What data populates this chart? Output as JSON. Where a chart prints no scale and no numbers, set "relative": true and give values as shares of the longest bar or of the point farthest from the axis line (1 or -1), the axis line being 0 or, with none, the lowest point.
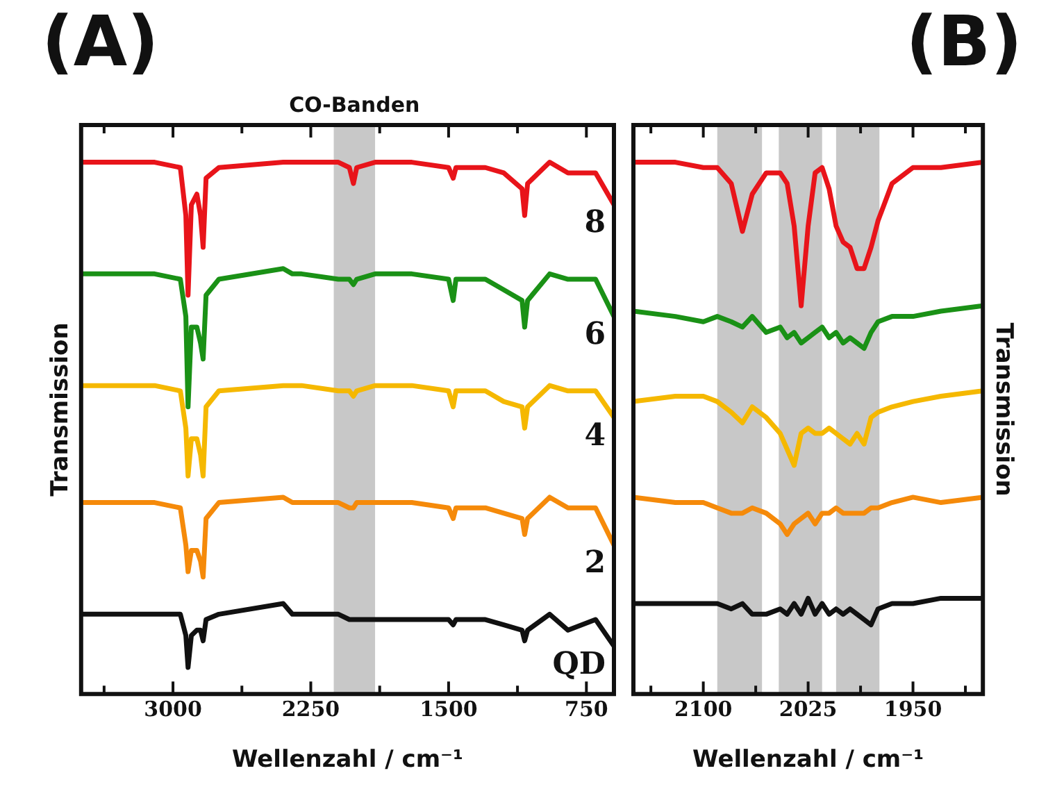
{
  "chart_data": [
    {
      "type": "line",
      "title": "(A)",
      "xlabel": "Wellenzahl / cm⁻¹",
      "ylabel": "Transmission",
      "relative": true,
      "grid": false,
      "legend": false,
      "marker": "none",
      "line_style": "solid",
      "tick_labels": "x",
      "xlim": [
        3500,
        600
      ],
      "xticks": [
        {
          "value": 3375,
          "label": null
        },
        3000,
        {
          "value": 2625,
          "label": null
        },
        2250,
        {
          "value": 1875,
          "label": null
        },
        1500,
        {
          "value": 1125,
          "label": null
        },
        750
      ],
      "bands": [
        {
          "axis": "x",
          "from": 2125,
          "to": 1900,
          "label": "CO-Banden",
          "color": "#c8c8c8"
        }
      ],
      "x": [
        3500,
        3100,
        2960,
        2930,
        2918,
        2900,
        2870,
        2850,
        2836,
        2820,
        2750,
        2400,
        2350,
        2300,
        2100,
        2040,
        2018,
        2000,
        1900,
        1700,
        1500,
        1475,
        1460,
        1300,
        1200,
        1100,
        1086,
        1070,
        950,
        850,
        700,
        600
      ],
      "series": [
        {
          "name": "8",
          "color": "#e8141a",
          "values": [
            1,
            1,
            0.99,
            0.9,
            0.75,
            0.92,
            0.94,
            0.9,
            0.84,
            0.97,
            0.99,
            1,
            1,
            1,
            1,
            0.99,
            0.96,
            0.99,
            1,
            1,
            0.99,
            0.97,
            0.99,
            0.99,
            0.98,
            0.95,
            0.9,
            0.96,
            1,
            0.98,
            0.98,
            0.92
          ]
        },
        {
          "name": "6",
          "color": "#1a9116",
          "values": [
            0.79,
            0.79,
            0.78,
            0.71,
            0.54,
            0.69,
            0.69,
            0.66,
            0.63,
            0.75,
            0.78,
            0.8,
            0.79,
            0.79,
            0.78,
            0.78,
            0.77,
            0.78,
            0.79,
            0.79,
            0.78,
            0.74,
            0.78,
            0.78,
            0.76,
            0.74,
            0.69,
            0.74,
            0.79,
            0.78,
            0.78,
            0.71
          ]
        },
        {
          "name": "4",
          "color": "#f5b800",
          "values": [
            0.58,
            0.58,
            0.57,
            0.5,
            0.41,
            0.48,
            0.48,
            0.45,
            0.41,
            0.54,
            0.57,
            0.58,
            0.58,
            0.58,
            0.57,
            0.57,
            0.56,
            0.57,
            0.58,
            0.58,
            0.57,
            0.54,
            0.57,
            0.57,
            0.55,
            0.54,
            0.5,
            0.54,
            0.58,
            0.57,
            0.57,
            0.52
          ]
        },
        {
          "name": "2",
          "color": "#f58a0a",
          "values": [
            0.36,
            0.36,
            0.35,
            0.28,
            0.23,
            0.27,
            0.27,
            0.25,
            0.22,
            0.33,
            0.36,
            0.37,
            0.36,
            0.36,
            0.36,
            0.35,
            0.35,
            0.36,
            0.36,
            0.36,
            0.35,
            0.33,
            0.35,
            0.35,
            0.34,
            0.33,
            0.3,
            0.33,
            0.37,
            0.35,
            0.35,
            0.28
          ]
        },
        {
          "name": "QD",
          "color": "#111111",
          "values": [
            0.15,
            0.15,
            0.15,
            0.11,
            0.05,
            0.11,
            0.12,
            0.12,
            0.1,
            0.14,
            0.15,
            0.17,
            0.15,
            0.15,
            0.15,
            0.14,
            0.14,
            0.14,
            0.14,
            0.14,
            0.14,
            0.13,
            0.14,
            0.14,
            0.13,
            0.12,
            0.1,
            0.12,
            0.15,
            0.12,
            0.14,
            0.09
          ]
        }
      ]
    },
    {
      "type": "line",
      "title": "(B)",
      "xlabel": "Wellenzahl / cm⁻¹",
      "ylabel": "Transmission",
      "relative": true,
      "grid": false,
      "legend": false,
      "marker": "none",
      "line_style": "solid",
      "tick_labels": "x",
      "xlim": [
        2150,
        1900
      ],
      "xticks": [
        {
          "value": 2137.5,
          "label": null
        },
        2100,
        {
          "value": 2062.5,
          "label": null
        },
        2025,
        {
          "value": 1987.5,
          "label": null
        },
        1950,
        {
          "value": 1912.5,
          "label": null
        }
      ],
      "bands": [
        {
          "axis": "x",
          "from": 2090,
          "to": 2058,
          "color": "#c8c8c8"
        },
        {
          "axis": "x",
          "from": 2046,
          "to": 2015,
          "color": "#c8c8c8"
        },
        {
          "axis": "x",
          "from": 2005,
          "to": 1974,
          "color": "#c8c8c8"
        }
      ],
      "x": [
        2150,
        2120,
        2100,
        2090,
        2080,
        2072,
        2065,
        2055,
        2045,
        2040,
        2035,
        2030,
        2025,
        2020,
        2015,
        2010,
        2005,
        2000,
        1995,
        1990,
        1985,
        1980,
        1975,
        1965,
        1950,
        1930,
        1900
      ],
      "series": [
        {
          "color": "#e8141a",
          "values": [
            1,
            1,
            0.99,
            0.99,
            0.96,
            0.87,
            0.94,
            0.98,
            0.98,
            0.96,
            0.88,
            0.73,
            0.88,
            0.98,
            0.99,
            0.95,
            0.88,
            0.85,
            0.84,
            0.8,
            0.8,
            0.84,
            0.89,
            0.96,
            0.99,
            0.99,
            1
          ]
        },
        {
          "color": "#1a9116",
          "values": [
            0.72,
            0.71,
            0.7,
            0.71,
            0.7,
            0.69,
            0.71,
            0.68,
            0.69,
            0.67,
            0.68,
            0.66,
            0.67,
            0.68,
            0.69,
            0.67,
            0.68,
            0.66,
            0.67,
            0.66,
            0.65,
            0.68,
            0.7,
            0.71,
            0.71,
            0.72,
            0.73
          ]
        },
        {
          "color": "#f5b800",
          "values": [
            0.55,
            0.56,
            0.56,
            0.55,
            0.53,
            0.51,
            0.54,
            0.52,
            0.49,
            0.46,
            0.43,
            0.49,
            0.5,
            0.49,
            0.49,
            0.5,
            0.49,
            0.48,
            0.47,
            0.49,
            0.47,
            0.52,
            0.53,
            0.54,
            0.55,
            0.56,
            0.57
          ]
        },
        {
          "color": "#f58a0a",
          "values": [
            0.37,
            0.36,
            0.36,
            0.35,
            0.34,
            0.34,
            0.35,
            0.34,
            0.32,
            0.3,
            0.32,
            0.33,
            0.34,
            0.32,
            0.34,
            0.34,
            0.35,
            0.34,
            0.34,
            0.34,
            0.34,
            0.35,
            0.35,
            0.36,
            0.37,
            0.36,
            0.37
          ]
        },
        {
          "color": "#111111",
          "values": [
            0.17,
            0.17,
            0.17,
            0.17,
            0.16,
            0.17,
            0.15,
            0.15,
            0.16,
            0.15,
            0.17,
            0.15,
            0.18,
            0.15,
            0.17,
            0.15,
            0.16,
            0.15,
            0.16,
            0.15,
            0.14,
            0.13,
            0.16,
            0.17,
            0.17,
            0.18,
            0.18
          ]
        }
      ]
    }
  ]
}
